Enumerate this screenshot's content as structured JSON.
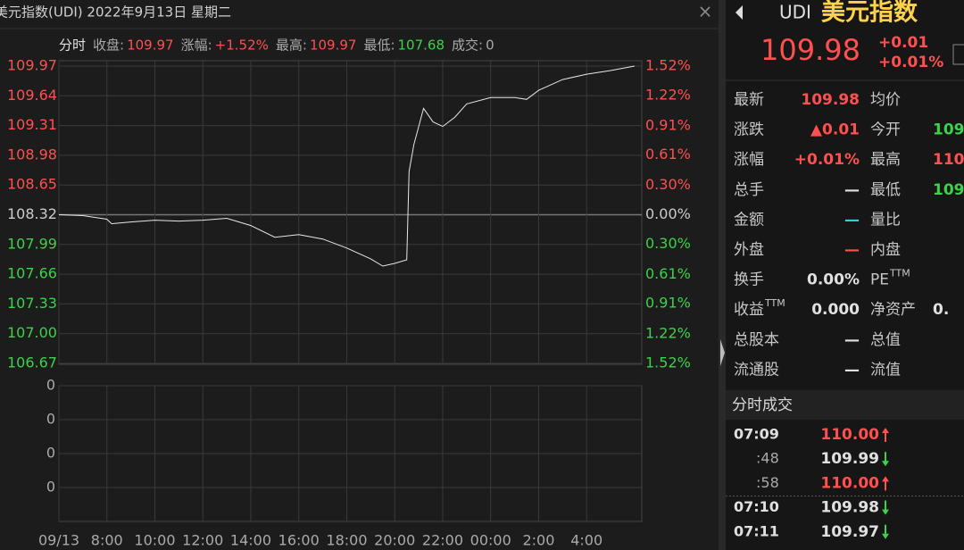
{
  "header": {
    "title": "美元指数(UDI) 2022年9月13日 星期二",
    "close": "×"
  },
  "info": {
    "mode": "分时",
    "close_label": "收盘:",
    "close_value": "109.97",
    "change_label": "涨幅:",
    "change_value": "+1.52%",
    "high_label": "最高:",
    "high_value": "109.97",
    "low_label": "最低:",
    "low_value": "107.68",
    "volume_label": "成交:",
    "volume_value": "0"
  },
  "chart_data": {
    "type": "line",
    "color": "#e8e8e8",
    "x": [
      6,
      7,
      8,
      8.2,
      9,
      10,
      11,
      12,
      13,
      14,
      15,
      16,
      17,
      18,
      19,
      19.5,
      20,
      20.5,
      20.6,
      20.8,
      21.2,
      21.6,
      22,
      22.5,
      23,
      24,
      25,
      25.5,
      26,
      27,
      28,
      29,
      30
    ],
    "values": [
      108.32,
      108.31,
      108.27,
      108.22,
      108.24,
      108.26,
      108.25,
      108.26,
      108.28,
      108.2,
      108.07,
      108.1,
      108.05,
      107.95,
      107.83,
      107.75,
      107.78,
      107.82,
      108.8,
      109.1,
      109.5,
      109.35,
      109.3,
      109.4,
      109.55,
      109.62,
      109.62,
      109.6,
      109.7,
      109.82,
      109.88,
      109.92,
      109.97
    ],
    "xlim": [
      6,
      30.3
    ],
    "xticks": [
      {
        "value": 6,
        "label": "09/13"
      },
      {
        "value": 8,
        "label": "8:00"
      },
      {
        "value": 10,
        "label": "10:00"
      },
      {
        "value": 12,
        "label": "12:00"
      },
      {
        "value": 14,
        "label": "14:00"
      },
      {
        "value": 16,
        "label": "16:00"
      },
      {
        "value": 18,
        "label": "18:00"
      },
      {
        "value": 20,
        "label": "20:00"
      },
      {
        "value": 22,
        "label": "22:00"
      },
      {
        "value": 24,
        "label": "00:00"
      },
      {
        "value": 26,
        "label": "2:00"
      },
      {
        "value": 28,
        "label": "4:00"
      }
    ],
    "ylim": [
      106.67,
      109.97
    ],
    "yticks": [
      {
        "value": 109.97,
        "label": "109.97"
      },
      {
        "value": 109.64,
        "label": "109.64"
      },
      {
        "value": 109.31,
        "label": "109.31"
      },
      {
        "value": 108.98,
        "label": "108.98"
      },
      {
        "value": 108.65,
        "label": "108.65"
      },
      {
        "value": 108.32,
        "label": "108.32"
      },
      {
        "value": 107.99,
        "label": "107.99"
      },
      {
        "value": 107.66,
        "label": "107.66"
      },
      {
        "value": 107.33,
        "label": "107.33"
      },
      {
        "value": 107,
        "label": "107.00"
      },
      {
        "value": 106.67,
        "label": "106.67"
      }
    ],
    "y2lim": [
      -1.52,
      1.52
    ],
    "y2ticks": [
      {
        "value": 1.52,
        "label": "1.52%"
      },
      {
        "value": 1.22,
        "label": "1.22%"
      },
      {
        "value": 0.91,
        "label": "0.91%"
      },
      {
        "value": 0.61,
        "label": "0.61%"
      },
      {
        "value": 0.3,
        "label": "0.30%"
      },
      {
        "value": 0,
        "label": "0.00%"
      },
      {
        "value": -0.3,
        "label": "0.30%"
      },
      {
        "value": -0.61,
        "label": "0.61%"
      },
      {
        "value": -0.91,
        "label": "0.91%"
      },
      {
        "value": -1.22,
        "label": "1.22%"
      },
      {
        "value": -1.52,
        "label": "1.52%"
      }
    ],
    "grid": true,
    "up_color": "#ff5050",
    "down_color": "#3cd24a",
    "flat_color": "#cccccc"
  },
  "volume_panel": {
    "ytick_labels": [
      "0",
      "0",
      "0",
      "0"
    ]
  },
  "quote": {
    "code": "UDI",
    "name": "美元指数",
    "price": "109.98",
    "change": "+0.01",
    "change_pct": "+0.01%"
  },
  "stats": [
    {
      "label": "最新",
      "value": "109.98",
      "value_color": "#ff5050",
      "label2": "均价"
    },
    {
      "label": "涨跌",
      "value": "▲0.01",
      "value_color": "#ff5050",
      "label2": "今开",
      "value2": "109.",
      "value2_color": "#3cd24a"
    },
    {
      "label": "涨幅",
      "value": "+0.01%",
      "value_color": "#ff5050",
      "label2": "最高",
      "value2": "110.",
      "value2_color": "#ff5050"
    },
    {
      "label": "总手",
      "value": "—",
      "value_color": "#e0e0e0",
      "label2": "最低",
      "value2": "109.",
      "value2_color": "#3cd24a"
    },
    {
      "label": "金额",
      "value": "—",
      "value_color": "#30d0e0",
      "label2": "量比"
    },
    {
      "label": "外盘",
      "value": "—",
      "value_color": "#ff5050",
      "label2": "内盘"
    },
    {
      "label": "换手",
      "value": "0.00%",
      "value_color": "#e0e0e0",
      "label2": "PE",
      "label2_sup": "TTM"
    },
    {
      "label": "收益",
      "label_sup": "TTM",
      "value": "0.000",
      "value_color": "#e0e0e0",
      "label2": "净资产",
      "value2": "0.",
      "value2_color": "#e0e0e0"
    },
    {
      "label": "总股本",
      "value": "—",
      "value_color": "#e0e0e0",
      "label2": "总值"
    },
    {
      "label": "流通股",
      "value": "—",
      "value_color": "#e0e0e0",
      "label2": "流值"
    }
  ],
  "trades": {
    "title": "分时成交",
    "rows": [
      {
        "time": "07:09",
        "price": "110.00",
        "dir": "up"
      },
      {
        "time": ":48",
        "price": "109.99",
        "dir": "down"
      },
      {
        "time": ":58",
        "price": "110.00",
        "dir": "up"
      },
      {
        "time": "07:10",
        "price": "109.98",
        "dir": "down"
      },
      {
        "time": "07:11",
        "price": "109.97",
        "dir": "down"
      }
    ]
  }
}
